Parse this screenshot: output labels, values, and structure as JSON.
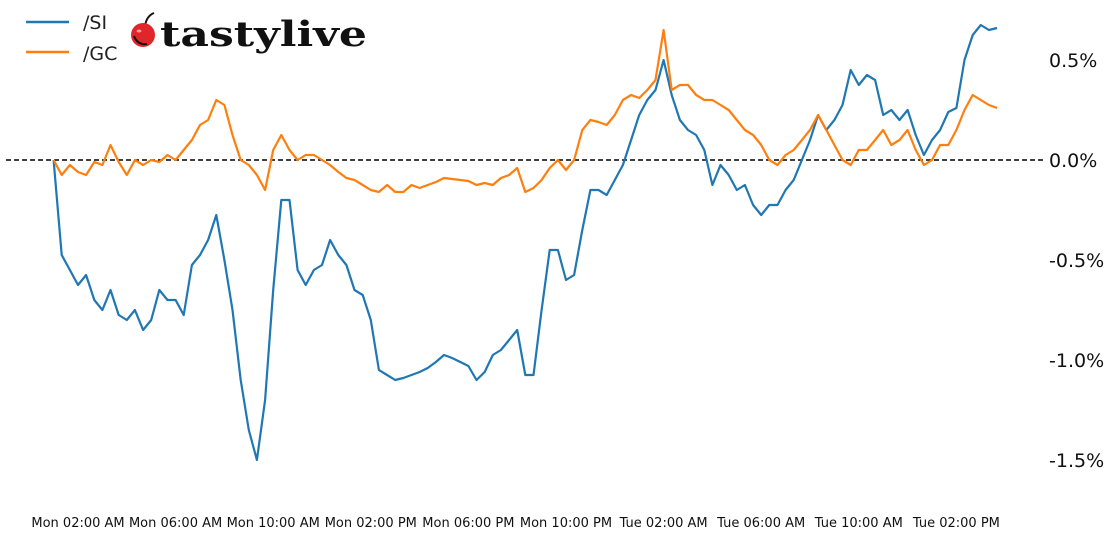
{
  "logo": {
    "text": "tastylive"
  },
  "chart_data": {
    "type": "line",
    "title": "",
    "xlabel": "",
    "ylabel": "",
    "ylim": [
      -1.75,
      0.72
    ],
    "reference_line": {
      "y": 0,
      "style": "dashed",
      "color": "#000000"
    },
    "grid": false,
    "legend": "top-left",
    "y_ticks": [
      {
        "v": 0.5,
        "label": "0.5%"
      },
      {
        "v": 0.0,
        "label": "0.0%"
      },
      {
        "v": -0.5,
        "label": "-0.5%"
      },
      {
        "v": -1.0,
        "label": "-1.0%"
      },
      {
        "v": -1.5,
        "label": "-1.5%"
      }
    ],
    "x_ticks": [
      {
        "t": "Mon 02:00",
        "label": "Mon 02:00 AM"
      },
      {
        "t": "Mon 06:00",
        "label": "Mon 06:00 AM"
      },
      {
        "t": "Mon 10:00",
        "label": "Mon 10:00 AM"
      },
      {
        "t": "Mon 14:00",
        "label": "Mon 02:00 PM"
      },
      {
        "t": "Mon 18:00",
        "label": "Mon 06:00 PM"
      },
      {
        "t": "Mon 22:00",
        "label": "Mon 10:00 PM"
      },
      {
        "t": "Tue 02:00",
        "label": "Tue 02:00 AM"
      },
      {
        "t": "Tue 06:00",
        "label": "Tue 06:00 AM"
      },
      {
        "t": "Tue 10:00",
        "label": "Tue 10:00 AM"
      },
      {
        "t": "Tue 14:00",
        "label": "Tue 02:00 PM"
      }
    ],
    "x": [
      "Mon 01:00",
      "Mon 01:20",
      "Mon 01:40",
      "Mon 02:00",
      "Mon 02:20",
      "Mon 02:40",
      "Mon 03:00",
      "Mon 03:20",
      "Mon 03:40",
      "Mon 04:00",
      "Mon 04:20",
      "Mon 04:40",
      "Mon 05:00",
      "Mon 05:20",
      "Mon 05:40",
      "Mon 06:00",
      "Mon 06:20",
      "Mon 06:40",
      "Mon 07:00",
      "Mon 07:20",
      "Mon 07:40",
      "Mon 08:00",
      "Mon 08:20",
      "Mon 08:40",
      "Mon 09:00",
      "Mon 09:20",
      "Mon 09:40",
      "Mon 10:00",
      "Mon 10:20",
      "Mon 10:40",
      "Mon 11:00",
      "Mon 11:20",
      "Mon 11:40",
      "Mon 12:00",
      "Mon 12:20",
      "Mon 12:40",
      "Mon 13:00",
      "Mon 13:20",
      "Mon 13:40",
      "Mon 14:00",
      "Mon 14:20",
      "Mon 14:40",
      "Mon 15:00",
      "Mon 15:20",
      "Mon 15:40",
      "Mon 16:00",
      "Mon 16:20",
      "Mon 16:40",
      "Mon 17:00",
      "Mon 17:20",
      "Mon 17:40",
      "Mon 18:00",
      "Mon 18:20",
      "Mon 18:40",
      "Mon 19:00",
      "Mon 19:20",
      "Mon 19:40",
      "Mon 20:00",
      "Mon 20:20",
      "Mon 20:40",
      "Mon 21:00",
      "Mon 21:20",
      "Mon 21:40",
      "Mon 22:00",
      "Mon 22:20",
      "Mon 22:40",
      "Mon 23:00",
      "Mon 23:20",
      "Mon 23:40",
      "Tue 00:00",
      "Tue 00:20",
      "Tue 00:40",
      "Tue 01:00",
      "Tue 01:20",
      "Tue 01:40",
      "Tue 02:00",
      "Tue 02:20",
      "Tue 02:40",
      "Tue 03:00",
      "Tue 03:20",
      "Tue 03:40",
      "Tue 04:00",
      "Tue 04:20",
      "Tue 04:40",
      "Tue 05:00",
      "Tue 05:20",
      "Tue 05:40",
      "Tue 06:00",
      "Tue 06:20",
      "Tue 06:40",
      "Tue 07:00",
      "Tue 07:20",
      "Tue 07:40",
      "Tue 08:00",
      "Tue 08:20",
      "Tue 08:40",
      "Tue 09:00",
      "Tue 09:20",
      "Tue 09:40",
      "Tue 10:00",
      "Tue 10:20",
      "Tue 10:40",
      "Tue 11:00",
      "Tue 11:20",
      "Tue 11:40",
      "Tue 12:00",
      "Tue 12:20",
      "Tue 12:40",
      "Tue 13:00",
      "Tue 13:20",
      "Tue 13:40",
      "Tue 14:00",
      "Tue 14:20",
      "Tue 14:40",
      "Tue 15:00",
      "Tue 15:20",
      "Tue 15:40"
    ],
    "series": [
      {
        "name": "/SI",
        "color": "#1f77b4",
        "values": [
          0,
          -0.475,
          -0.55,
          -0.625,
          -0.575,
          -0.7,
          -0.75,
          -0.65,
          -0.775,
          -0.8,
          -0.75,
          -0.85,
          -0.8,
          -0.65,
          -0.7,
          -0.7,
          -0.775,
          -0.525,
          -0.475,
          -0.4,
          -0.275,
          -0.5,
          -0.75,
          -1.1,
          -1.35,
          -1.5,
          -1.2,
          -0.65,
          -0.2,
          -0.2,
          -0.55,
          -0.625,
          -0.55,
          -0.525,
          -0.4,
          -0.475,
          -0.525,
          -0.65,
          -0.675,
          -0.8,
          -1.05,
          -1.075,
          -1.1,
          -1.09,
          -1.075,
          -1.06,
          -1.04,
          -1.01,
          -0.975,
          -0.99,
          -1.01,
          -1.03,
          -1.1,
          -1.06,
          -0.975,
          -0.95,
          -0.9,
          -0.85,
          -1.075,
          -1.075,
          -0.75,
          -0.45,
          -0.45,
          -0.6,
          -0.575,
          -0.35,
          -0.15,
          -0.15,
          -0.175,
          -0.1,
          -0.025,
          0.1,
          0.225,
          0.3,
          0.35,
          0.5,
          0.325,
          0.2,
          0.15,
          0.125,
          0.05,
          -0.125,
          -0.025,
          -0.075,
          -0.15,
          -0.125,
          -0.225,
          -0.275,
          -0.225,
          -0.225,
          -0.15,
          -0.1,
          0,
          0.1,
          0.225,
          0.15,
          0.2,
          0.275,
          0.45,
          0.375,
          0.425,
          0.4,
          0.225,
          0.25,
          0.2,
          0.25,
          0.125,
          0.025,
          0.1,
          0.15,
          0.24,
          0.26,
          0.5,
          0.625,
          0.675,
          0.65,
          0.66
        ]
      },
      {
        "name": "/GC",
        "color": "#ff7f0e",
        "values": [
          0,
          -0.075,
          -0.025,
          -0.06,
          -0.075,
          -0.01,
          -0.025,
          0.075,
          -0.01,
          -0.075,
          0,
          -0.025,
          0,
          -0.01,
          0.025,
          0,
          0.05,
          0.1,
          0.175,
          0.2,
          0.3,
          0.275,
          0.125,
          0,
          -0.025,
          -0.075,
          -0.15,
          0.05,
          0.125,
          0.05,
          0,
          0.025,
          0.025,
          0,
          -0.025,
          -0.06,
          -0.09,
          -0.1,
          -0.125,
          -0.15,
          -0.16,
          -0.125,
          -0.16,
          -0.16,
          -0.125,
          -0.14,
          -0.125,
          -0.11,
          -0.09,
          -0.095,
          -0.1,
          -0.105,
          -0.125,
          -0.115,
          -0.125,
          -0.09,
          -0.075,
          -0.04,
          -0.16,
          -0.14,
          -0.1,
          -0.04,
          0,
          -0.05,
          0,
          0.15,
          0.2,
          0.19,
          0.175,
          0.225,
          0.3,
          0.325,
          0.31,
          0.35,
          0.4,
          0.65,
          0.35,
          0.375,
          0.375,
          0.325,
          0.3,
          0.3,
          0.275,
          0.25,
          0.2,
          0.15,
          0.125,
          0.075,
          0,
          -0.025,
          0.025,
          0.05,
          0.1,
          0.15,
          0.225,
          0.15,
          0.075,
          0,
          -0.025,
          0.05,
          0.05,
          0.1,
          0.15,
          0.075,
          0.1,
          0.15,
          0.05,
          -0.025,
          0,
          0.075,
          0.075,
          0.15,
          0.25,
          0.325,
          0.3,
          0.275,
          0.26
        ]
      }
    ]
  }
}
